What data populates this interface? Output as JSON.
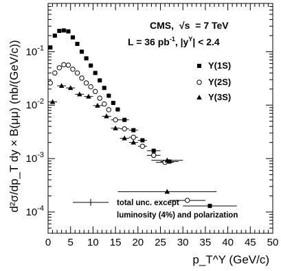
{
  "chart_data": {
    "type": "scatter",
    "xlabel": "p_T^Υ (GeV/c)",
    "ylabel": "d²σ/dp_T dy × B(μμ) (nb/(GeV/c))",
    "xlim": [
      0,
      50
    ],
    "ylim": [
      4e-05,
      0.8
    ],
    "y_scale": "log",
    "x_ticks": [
      0,
      5,
      10,
      15,
      20,
      25,
      30,
      35,
      40,
      45,
      50
    ],
    "x_tick_labels": [
      "0",
      "5",
      "10",
      "15",
      "20",
      "25",
      "30",
      "35",
      "40",
      "45",
      "50"
    ],
    "y_ticks": [
      0.0001,
      0.001,
      0.01,
      0.1
    ],
    "y_tick_labels": [
      {
        "base": "10",
        "exp": "-4"
      },
      {
        "base": "10",
        "exp": "-3"
      },
      {
        "base": "10",
        "exp": "-2"
      },
      {
        "base": "10",
        "exp": "-1"
      }
    ],
    "grid": false,
    "legend_position": "right",
    "annotations": {
      "experiment": "CMS,",
      "energy_symbol": "√s",
      "energy_value": "= 7 TeV",
      "lumi_prefix": "L = 36 pb",
      "lumi_exp": "-1",
      "rapidity_cut_prefix": ",  |y",
      "rapidity_cut_sup": "Υ",
      "rapidity_cut_suffix": "| < 2.4",
      "uncertainty_line1": "total unc. except",
      "uncertainty_line2": "luminosity (4%) and polarization"
    },
    "series": [
      {
        "name": "Υ(1S)",
        "marker": "filled-square",
        "points": [
          {
            "x": 0.5,
            "xerr": 0.5,
            "y": 0.12
          },
          {
            "x": 1.5,
            "xerr": 0.5,
            "y": 0.2
          },
          {
            "x": 2.5,
            "xerr": 0.5,
            "y": 0.245
          },
          {
            "x": 3.5,
            "xerr": 0.5,
            "y": 0.25
          },
          {
            "x": 4.5,
            "xerr": 0.5,
            "y": 0.24
          },
          {
            "x": 5.5,
            "xerr": 0.5,
            "y": 0.185
          },
          {
            "x": 6.5,
            "xerr": 0.5,
            "y": 0.14
          },
          {
            "x": 7.5,
            "xerr": 0.5,
            "y": 0.1
          },
          {
            "x": 8.5,
            "xerr": 0.5,
            "y": 0.075
          },
          {
            "x": 9.5,
            "xerr": 0.5,
            "y": 0.055
          },
          {
            "x": 10.5,
            "xerr": 0.5,
            "y": 0.04
          },
          {
            "x": 11.5,
            "xerr": 0.5,
            "y": 0.029
          },
          {
            "x": 12.5,
            "xerr": 0.5,
            "y": 0.021
          },
          {
            "x": 13.5,
            "xerr": 0.5,
            "y": 0.015
          },
          {
            "x": 14.5,
            "xerr": 0.5,
            "y": 0.011
          },
          {
            "x": 15.5,
            "xerr": 0.5,
            "y": 0.0083
          },
          {
            "x": 17,
            "xerr": 1,
            "y": 0.0053
          },
          {
            "x": 19,
            "xerr": 1,
            "y": 0.0034
          },
          {
            "x": 21,
            "xerr": 1,
            "y": 0.0022
          },
          {
            "x": 23.5,
            "xerr": 1.5,
            "y": 0.0014
          },
          {
            "x": 27,
            "xerr": 2,
            "y": 0.00088
          },
          {
            "x": 36,
            "xerr": 6,
            "y": 0.00013
          }
        ]
      },
      {
        "name": "Υ(2S)",
        "marker": "open-circle",
        "points": [
          {
            "x": 0.5,
            "xerr": 0.5,
            "y": 0.026
          },
          {
            "x": 1.5,
            "xerr": 0.5,
            "y": 0.04
          },
          {
            "x": 2.5,
            "xerr": 0.5,
            "y": 0.05
          },
          {
            "x": 3.5,
            "xerr": 0.5,
            "y": 0.057
          },
          {
            "x": 4.5,
            "xerr": 0.5,
            "y": 0.056
          },
          {
            "x": 5.5,
            "xerr": 0.5,
            "y": 0.047
          },
          {
            "x": 6.5,
            "xerr": 0.5,
            "y": 0.04
          },
          {
            "x": 7.5,
            "xerr": 0.5,
            "y": 0.032
          },
          {
            "x": 8.5,
            "xerr": 0.5,
            "y": 0.026
          },
          {
            "x": 9.5,
            "xerr": 0.5,
            "y": 0.022
          },
          {
            "x": 10.5,
            "xerr": 0.5,
            "y": 0.018
          },
          {
            "x": 11.5,
            "xerr": 0.5,
            "y": 0.0135
          },
          {
            "x": 12.5,
            "xerr": 0.5,
            "y": 0.0105
          },
          {
            "x": 13.5,
            "xerr": 0.5,
            "y": 0.0082
          },
          {
            "x": 15,
            "xerr": 1,
            "y": 0.0053
          },
          {
            "x": 17,
            "xerr": 1,
            "y": 0.0036
          },
          {
            "x": 19,
            "xerr": 1,
            "y": 0.0025
          },
          {
            "x": 21,
            "xerr": 1,
            "y": 0.0017
          },
          {
            "x": 23.5,
            "xerr": 1.5,
            "y": 0.00115
          },
          {
            "x": 26,
            "xerr": 2,
            "y": 0.00085
          },
          {
            "x": 31,
            "xerr": 4,
            "y": 0.000165
          }
        ]
      },
      {
        "name": "Υ(3S)",
        "marker": "filled-triangle",
        "points": [
          {
            "x": 1,
            "xerr": 1,
            "y": 0.0115
          },
          {
            "x": 3,
            "xerr": 1,
            "y": 0.023
          },
          {
            "x": 5,
            "xerr": 1,
            "y": 0.021
          },
          {
            "x": 7,
            "xerr": 1,
            "y": 0.016
          },
          {
            "x": 9,
            "xerr": 1,
            "y": 0.0145
          },
          {
            "x": 11,
            "xerr": 1,
            "y": 0.0098
          },
          {
            "x": 13,
            "xerr": 1,
            "y": 0.0062
          },
          {
            "x": 15,
            "xerr": 1,
            "y": 0.0037
          },
          {
            "x": 17,
            "xerr": 1,
            "y": 0.0024
          },
          {
            "x": 19,
            "xerr": 1,
            "y": 0.002
          },
          {
            "x": 26.5,
            "xerr": 3.5,
            "y": 0.00093
          },
          {
            "x": 26.5,
            "xerr": 11,
            "y": 0.00024
          }
        ]
      }
    ]
  }
}
